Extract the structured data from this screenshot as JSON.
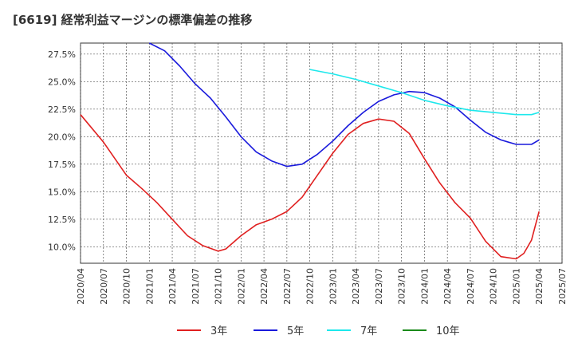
{
  "title": "[6619]  経常利益マージンの標準偏差の推移",
  "chart_data": {
    "type": "line",
    "title": "[6619]  経常利益マージンの標準偏差の推移",
    "xlabel": "",
    "ylabel": "",
    "x_ticks": [
      "2020/04",
      "2020/07",
      "2020/10",
      "2021/01",
      "2021/04",
      "2021/07",
      "2021/10",
      "2022/01",
      "2022/04",
      "2022/07",
      "2022/10",
      "2023/01",
      "2023/04",
      "2023/07",
      "2023/10",
      "2024/01",
      "2024/04",
      "2024/07",
      "2024/10",
      "2025/01",
      "2025/04",
      "2025/07"
    ],
    "y_ticks": [
      "10.0%",
      "12.5%",
      "15.0%",
      "17.5%",
      "20.0%",
      "22.5%",
      "25.0%",
      "27.5%"
    ],
    "ylim": [
      8.5,
      28.5
    ],
    "grid": true,
    "legend_position": "bottom",
    "series": [
      {
        "name": "3年",
        "color": "#e02020",
        "points": [
          [
            "2020/04",
            22.0
          ],
          [
            "2020/07",
            19.5
          ],
          [
            "2020/10",
            16.5
          ],
          [
            "2020/12",
            15.3
          ],
          [
            "2021/02",
            14.0
          ],
          [
            "2021/04",
            12.5
          ],
          [
            "2021/06",
            11.0
          ],
          [
            "2021/08",
            10.1
          ],
          [
            "2021/10",
            9.6
          ],
          [
            "2021/11",
            9.8
          ],
          [
            "2022/01",
            11.0
          ],
          [
            "2022/03",
            12.0
          ],
          [
            "2022/05",
            12.5
          ],
          [
            "2022/07",
            13.2
          ],
          [
            "2022/09",
            14.5
          ],
          [
            "2022/11",
            16.5
          ],
          [
            "2023/01",
            18.5
          ],
          [
            "2023/03",
            20.2
          ],
          [
            "2023/05",
            21.2
          ],
          [
            "2023/07",
            21.6
          ],
          [
            "2023/09",
            21.4
          ],
          [
            "2023/11",
            20.3
          ],
          [
            "2024/01",
            18.0
          ],
          [
            "2024/03",
            15.8
          ],
          [
            "2024/05",
            14.0
          ],
          [
            "2024/07",
            12.6
          ],
          [
            "2024/09",
            10.5
          ],
          [
            "2024/11",
            9.1
          ],
          [
            "2025/01",
            8.9
          ],
          [
            "2025/02",
            9.4
          ],
          [
            "2025/03",
            10.6
          ],
          [
            "2025/04",
            13.2
          ]
        ]
      },
      {
        "name": "5年",
        "color": "#1a1adc",
        "points": [
          [
            "2021/01",
            28.5
          ],
          [
            "2021/03",
            27.8
          ],
          [
            "2021/05",
            26.4
          ],
          [
            "2021/07",
            24.8
          ],
          [
            "2021/09",
            23.5
          ],
          [
            "2021/11",
            21.8
          ],
          [
            "2022/01",
            20.0
          ],
          [
            "2022/03",
            18.6
          ],
          [
            "2022/05",
            17.8
          ],
          [
            "2022/07",
            17.3
          ],
          [
            "2022/09",
            17.5
          ],
          [
            "2022/11",
            18.4
          ],
          [
            "2023/01",
            19.6
          ],
          [
            "2023/03",
            21.0
          ],
          [
            "2023/05",
            22.2
          ],
          [
            "2023/07",
            23.2
          ],
          [
            "2023/09",
            23.8
          ],
          [
            "2023/11",
            24.1
          ],
          [
            "2024/01",
            24.0
          ],
          [
            "2024/03",
            23.5
          ],
          [
            "2024/05",
            22.7
          ],
          [
            "2024/07",
            21.5
          ],
          [
            "2024/09",
            20.4
          ],
          [
            "2024/11",
            19.7
          ],
          [
            "2025/01",
            19.3
          ],
          [
            "2025/03",
            19.3
          ],
          [
            "2025/04",
            19.7
          ]
        ]
      },
      {
        "name": "7年",
        "color": "#1de8ec",
        "points": [
          [
            "2022/10",
            26.1
          ],
          [
            "2023/01",
            25.7
          ],
          [
            "2023/04",
            25.2
          ],
          [
            "2023/07",
            24.6
          ],
          [
            "2023/10",
            24.0
          ],
          [
            "2024/01",
            23.3
          ],
          [
            "2024/04",
            22.8
          ],
          [
            "2024/07",
            22.4
          ],
          [
            "2024/10",
            22.2
          ],
          [
            "2025/01",
            22.0
          ],
          [
            "2025/03",
            22.0
          ],
          [
            "2025/04",
            22.2
          ]
        ]
      },
      {
        "name": "10年",
        "color": "#1a8a1a",
        "points": []
      }
    ]
  }
}
